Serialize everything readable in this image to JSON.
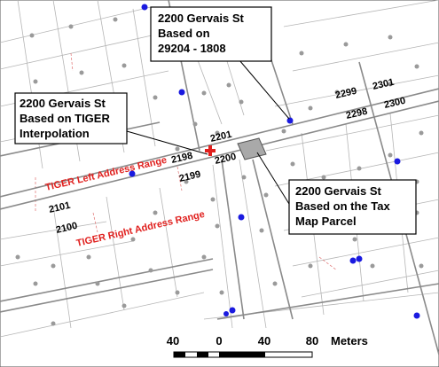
{
  "callouts": {
    "parcel_1808": {
      "lines": [
        "2200 Gervais St",
        "Based on",
        "29204 - 1808"
      ]
    },
    "tiger": {
      "lines": [
        "2200 Gervais St",
        "Based on TIGER",
        "Interpolation"
      ]
    },
    "tax_map": {
      "lines": [
        "2200 Gervais St",
        "Based on the Tax",
        "Map Parcel"
      ]
    }
  },
  "address_labels": {
    "a2299": "2299",
    "a2301": "2301",
    "a2298": "2298",
    "a2300_right": "2300",
    "a2201": "2201",
    "a2198": "2198",
    "a2200": "2200",
    "a2199": "2199",
    "a2101": "2101",
    "a2100": "2100"
  },
  "tiger_labels": {
    "left": "TIGER Left Address Range",
    "right": "TIGER Right Address Range"
  },
  "scale_bar": {
    "ticks": [
      "40",
      "0",
      "40",
      "80"
    ],
    "unit": "Meters"
  },
  "colors": {
    "street_line": "#8a8a8a",
    "parcel_line": "#b5b5b5",
    "point": "#1a1ae0",
    "dot": "#9a9a9a",
    "tiger_text": "#e0201e",
    "geocode_cross": "#e0201e",
    "parcel_fill": "#a9a9a9"
  }
}
